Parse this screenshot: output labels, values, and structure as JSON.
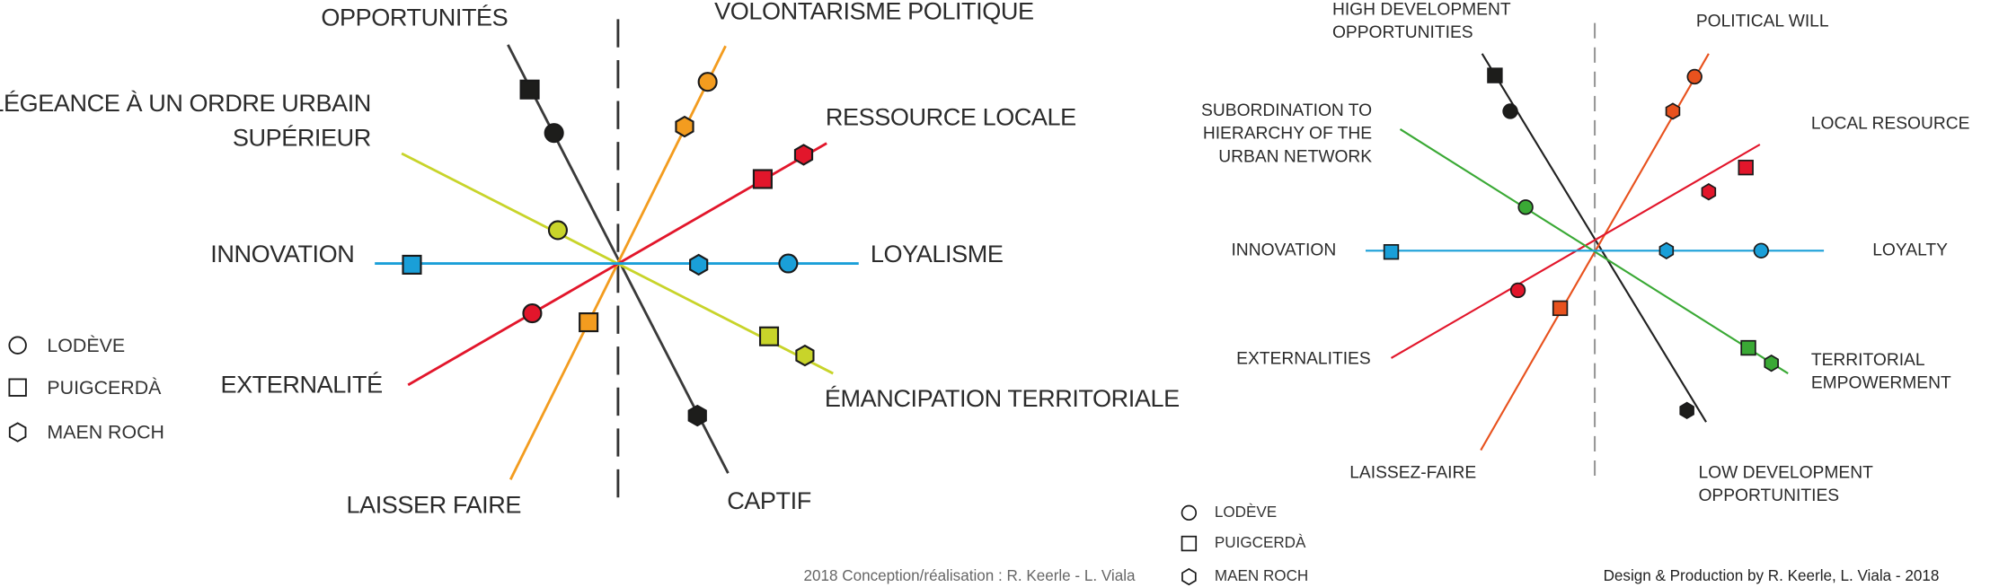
{
  "left_panel": {
    "axis_labels": {
      "opportunities": "OPPORTUNITÉS",
      "political_will": "VOLONTARISME POLITIQUE",
      "subordination": [
        "ALLÉGEANCE À UN ORDRE URBAIN",
        "SUPÉRIEUR"
      ],
      "local_resource": "RESSOURCE LOCALE",
      "innovation": "INNOVATION",
      "loyalty": "LOYALISME",
      "externalities": "EXTERNALITÉ",
      "empowerment": "ÉMANCIPATION TERRITORIALE",
      "laissez_faire": "LAISSER FAIRE",
      "low_opportunities": "CAPTIF"
    },
    "legend": [
      "LODÈVE",
      "PUIGCERDÀ",
      "MAEN ROCH"
    ],
    "credit": "2018 Conception/réalisation : R. Keerle - L. Viala"
  },
  "right_panel": {
    "axis_labels": {
      "opportunities": [
        "HIGH DEVELOPMENT",
        "OPPORTUNITIES"
      ],
      "political_will": "POLITICAL WILL",
      "subordination": [
        "SUBORDINATION TO",
        "HIERARCHY OF THE",
        "URBAN NETWORK"
      ],
      "local_resource": "LOCAL RESOURCE",
      "innovation": "INNOVATION",
      "loyalty": "LOYALTY",
      "externalities": "EXTERNALITIES",
      "empowerment": [
        "TERRITORIAL",
        "EMPOWERMENT"
      ],
      "laissez_faire": "LAISSEZ-FAIRE",
      "low_opportunities": [
        "LOW DEVELOPMENT",
        "OPPORTUNITIES"
      ]
    },
    "legend": [
      "LODÈVE",
      "PUIGCERDÀ",
      "MAEN ROCH"
    ],
    "credit": "Design & Production by R. Keerle, L. Viala - 2018"
  }
}
